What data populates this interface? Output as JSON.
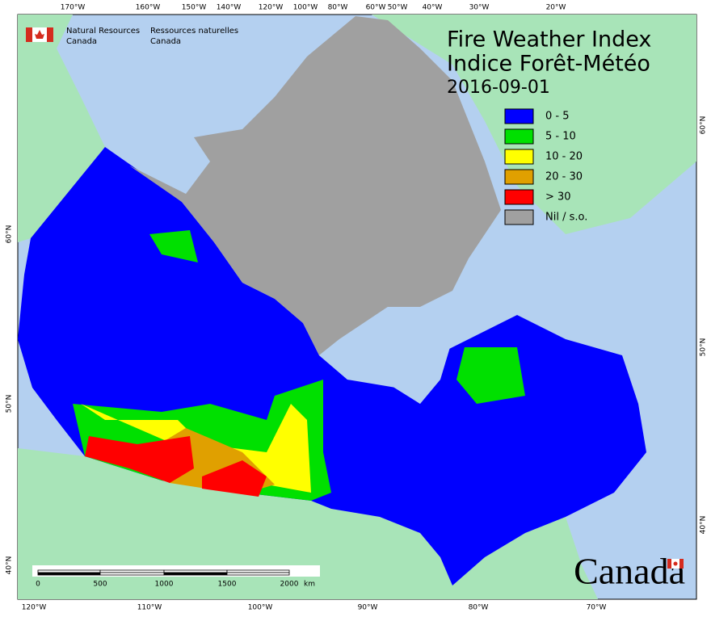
{
  "header": {
    "agency_en": [
      "Natural Resources",
      "Canada"
    ],
    "agency_fr": [
      "Ressources naturelles",
      "Canada"
    ]
  },
  "title": {
    "en": "Fire Weather Index",
    "fr": "Indice Forêt-Météo",
    "date": "2016-09-01"
  },
  "legend": [
    {
      "label": "0 - 5",
      "color": "#0000ff"
    },
    {
      "label": "5 - 10",
      "color": "#00e000"
    },
    {
      "label": "10 - 20",
      "color": "#ffff00"
    },
    {
      "label": "20 - 30",
      "color": "#e0a000"
    },
    {
      "label": "> 30",
      "color": "#ff0000"
    },
    {
      "label": "Nil / s.o.",
      "color": "#a0a0a0"
    }
  ],
  "top_axis": [
    "170°W",
    "160°W",
    "150°W",
    "140°W",
    "120°W",
    "100°W",
    "80°W",
    "60°W",
    "50°W",
    "40°W",
    "30°W",
    "20°W"
  ],
  "bottom_axis": [
    "120°W",
    "110°W",
    "100°W",
    "90°W",
    "80°W",
    "70°W"
  ],
  "left_axis": [
    "60°N",
    "50°N",
    "40°N"
  ],
  "right_axis": [
    "60°N",
    "50°N",
    "40°N"
  ],
  "scale": {
    "ticks": [
      "0",
      "500",
      "1000",
      "1500",
      "2000"
    ],
    "unit": "km"
  },
  "wordmark": "Canada"
}
